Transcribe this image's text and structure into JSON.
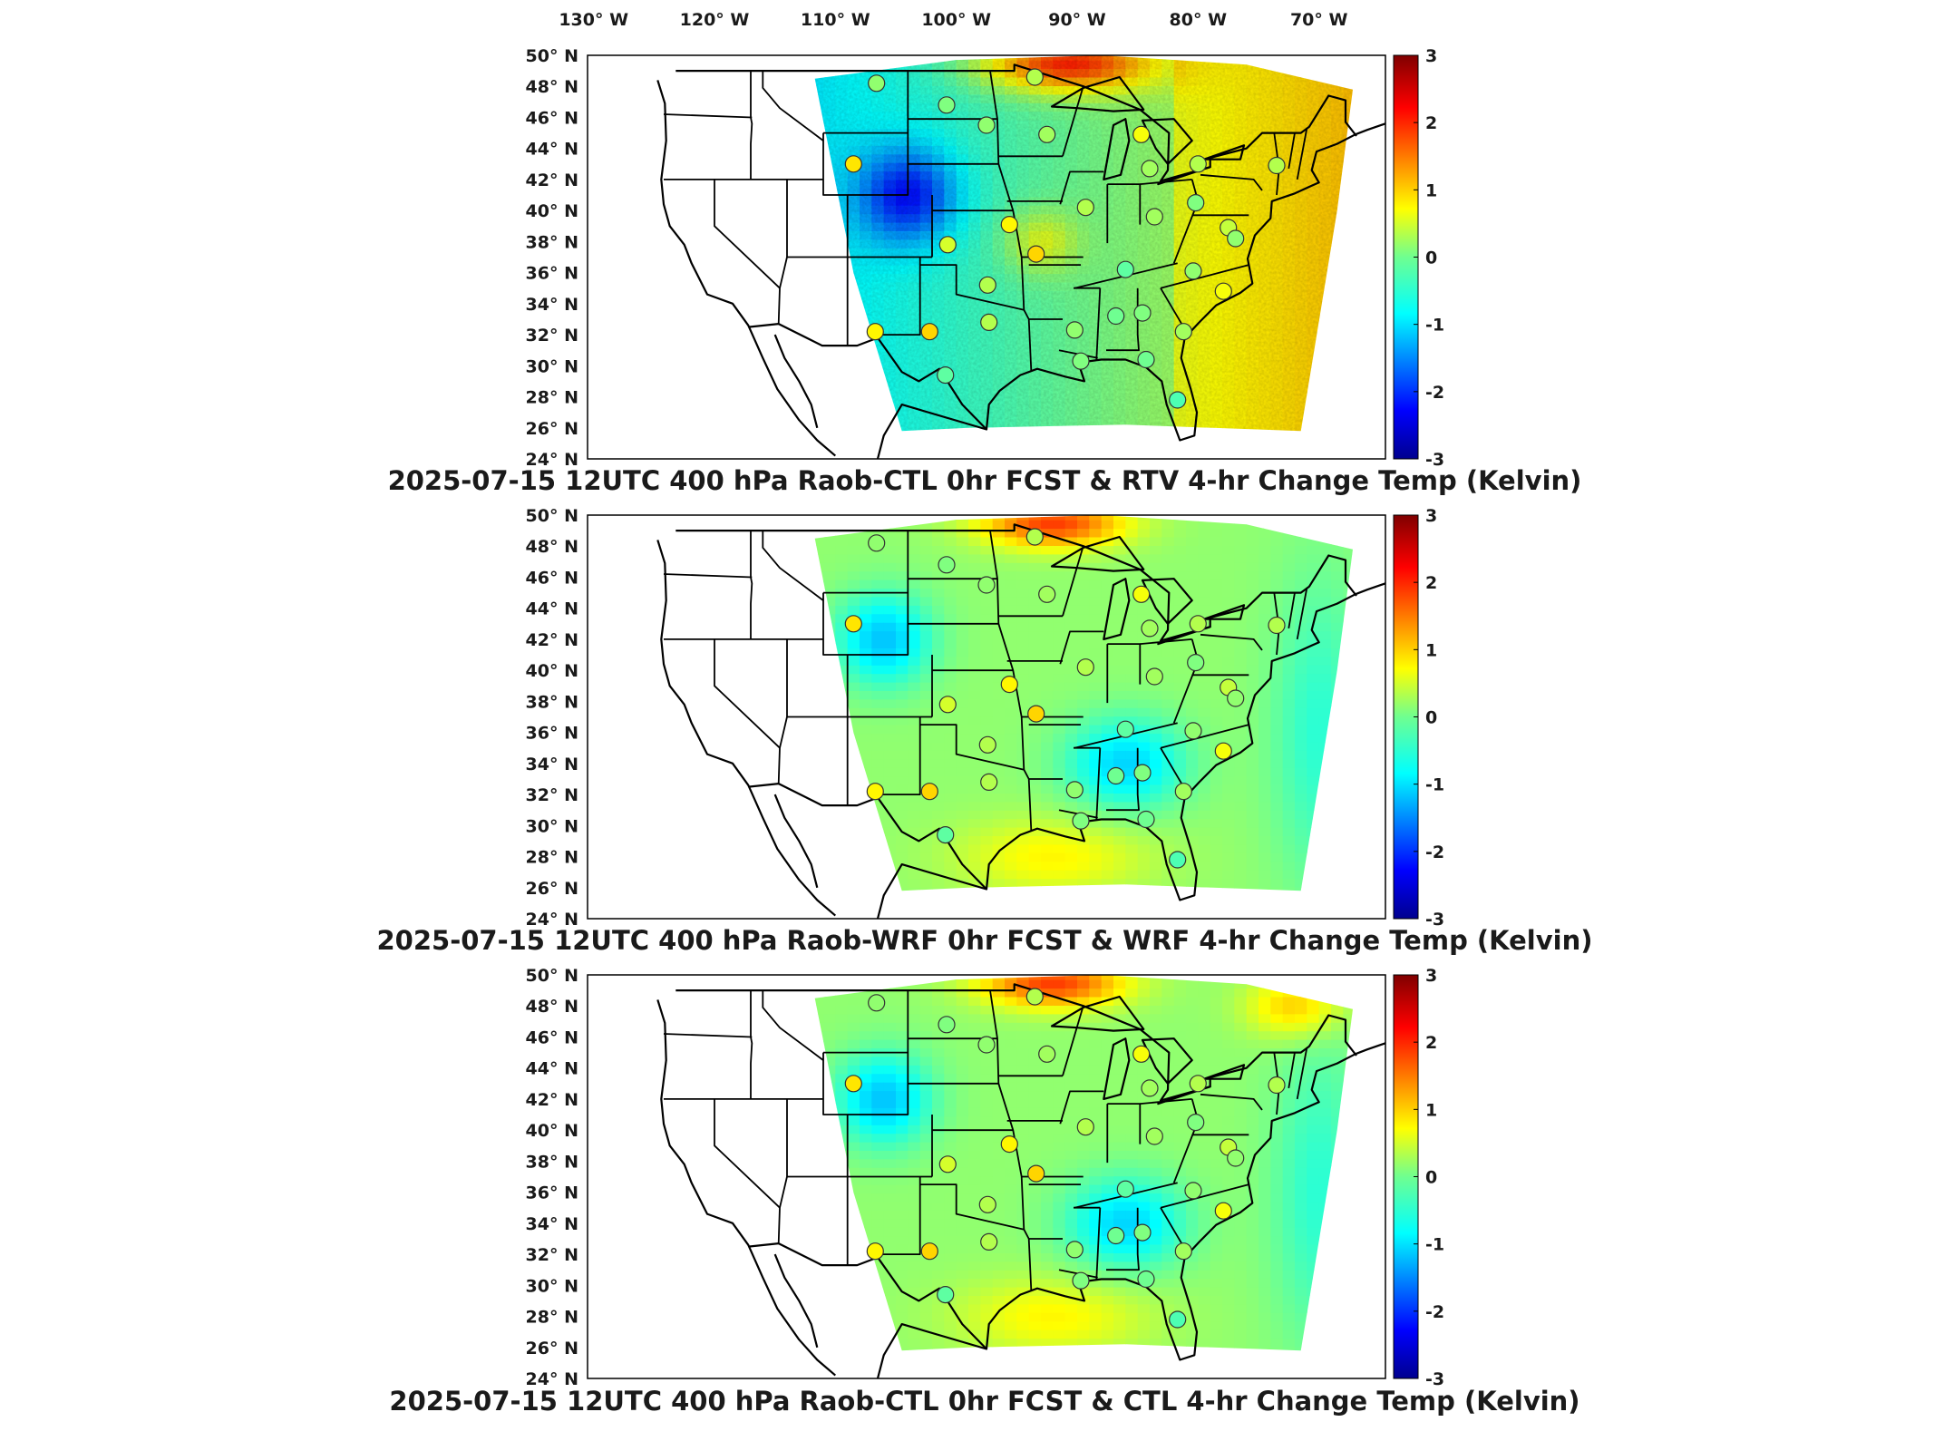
{
  "chart_data": [
    {
      "type": "heatmap",
      "title": "2025-07-15 12UTC 400 hPa Raob-CTL 0hr FCST & RTV 4-hr Change Temp (Kelvin)",
      "xlabel": "",
      "ylabel": "",
      "colorbar": {
        "label": "",
        "limits": [
          -3,
          3
        ],
        "ticks": [
          "3",
          "2",
          "1",
          "0",
          "-1",
          "-2",
          "-3"
        ]
      },
      "lon_ticks": [
        "130° W",
        "120° W",
        "110° W",
        "100° W",
        "90° W",
        "80° W",
        "70° W"
      ],
      "lat_ticks": [
        "50° N",
        "48° N",
        "46° N",
        "44° N",
        "42° N",
        "40° N",
        "38° N",
        "36° N",
        "34° N",
        "32° N",
        "30° N",
        "28° N",
        "26° N",
        "24° N"
      ],
      "station_values": [
        {
          "lon": -106.6,
          "lat": 48.2,
          "value": 0.1
        },
        {
          "lon": -100.8,
          "lat": 46.8,
          "value": 0.0
        },
        {
          "lon": -97.5,
          "lat": 45.5,
          "value": 0.1
        },
        {
          "lon": -93.5,
          "lat": 48.6,
          "value": 0.3
        },
        {
          "lon": -92.5,
          "lat": 44.9,
          "value": 0.2
        },
        {
          "lon": -108.5,
          "lat": 43.0,
          "value": 0.9
        },
        {
          "lon": -89.3,
          "lat": 40.2,
          "value": 0.3
        },
        {
          "lon": -95.6,
          "lat": 39.1,
          "value": 0.8
        },
        {
          "lon": -100.7,
          "lat": 37.8,
          "value": 0.5
        },
        {
          "lon": -93.4,
          "lat": 37.2,
          "value": 1.0
        },
        {
          "lon": -97.4,
          "lat": 35.2,
          "value": 0.3
        },
        {
          "lon": -106.7,
          "lat": 32.2,
          "value": 0.8
        },
        {
          "lon": -102.2,
          "lat": 32.2,
          "value": 1.0
        },
        {
          "lon": -97.3,
          "lat": 32.8,
          "value": 0.3
        },
        {
          "lon": -100.9,
          "lat": 29.4,
          "value": -0.2
        },
        {
          "lon": -90.2,
          "lat": 32.3,
          "value": 0.1
        },
        {
          "lon": -86.8,
          "lat": 33.2,
          "value": -0.1
        },
        {
          "lon": -84.6,
          "lat": 33.4,
          "value": 0.0
        },
        {
          "lon": -86.0,
          "lat": 36.2,
          "value": -0.2
        },
        {
          "lon": -81.2,
          "lat": 32.2,
          "value": 0.2
        },
        {
          "lon": -84.3,
          "lat": 30.4,
          "value": -0.1
        },
        {
          "lon": -81.7,
          "lat": 27.8,
          "value": -0.3
        },
        {
          "lon": -89.7,
          "lat": 30.3,
          "value": 0.0
        },
        {
          "lon": -80.4,
          "lat": 36.1,
          "value": 0.1
        },
        {
          "lon": -77.9,
          "lat": 34.8,
          "value": 0.7
        },
        {
          "lon": -83.6,
          "lat": 39.6,
          "value": 0.2
        },
        {
          "lon": -80.2,
          "lat": 40.5,
          "value": 0.0
        },
        {
          "lon": -77.5,
          "lat": 38.9,
          "value": 0.4
        },
        {
          "lon": -76.9,
          "lat": 38.2,
          "value": 0.1
        },
        {
          "lon": -84.0,
          "lat": 42.7,
          "value": 0.2
        },
        {
          "lon": -80.0,
          "lat": 43.0,
          "value": 0.3
        },
        {
          "lon": -84.7,
          "lat": 44.9,
          "value": 0.7
        },
        {
          "lon": -73.5,
          "lat": 42.9,
          "value": 0.3
        }
      ]
    },
    {
      "type": "heatmap",
      "title": "2025-07-15 12UTC 400 hPa Raob-WRF 0hr FCST & WRF 4-hr Change Temp (Kelvin)",
      "xlabel": "",
      "ylabel": "",
      "colorbar": {
        "label": "",
        "limits": [
          -3,
          3
        ],
        "ticks": [
          "3",
          "2",
          "1",
          "0",
          "-1",
          "-2",
          "-3"
        ]
      },
      "lat_ticks": [
        "50° N",
        "48° N",
        "46° N",
        "44° N",
        "42° N",
        "40° N",
        "38° N",
        "36° N",
        "34° N",
        "32° N",
        "30° N",
        "28° N",
        "26° N",
        "24° N"
      ],
      "station_values": "same stations as panel 1"
    },
    {
      "type": "heatmap",
      "title": "2025-07-15 12UTC 400 hPa Raob-CTL 0hr FCST & CTL 4-hr Change Temp (Kelvin)",
      "xlabel": "",
      "ylabel": "",
      "colorbar": {
        "label": "",
        "limits": [
          -3,
          3
        ],
        "ticks": [
          "3",
          "2",
          "1",
          "0",
          "-1",
          "-2",
          "-3"
        ]
      },
      "lat_ticks": [
        "50° N",
        "48° N",
        "46° N",
        "44° N",
        "42° N",
        "40° N",
        "38° N",
        "36° N",
        "34° N",
        "32° N",
        "30° N",
        "28° N",
        "26° N",
        "24° N"
      ],
      "station_values": "same stations as panel 1"
    }
  ],
  "colors": {
    "colormap": [
      "#00008f",
      "#0000ff",
      "#0080ff",
      "#00ffff",
      "#80ff80",
      "#ffff00",
      "#ff8000",
      "#ff0000",
      "#800000"
    ],
    "coast": "#000000",
    "frame": "#000000"
  }
}
